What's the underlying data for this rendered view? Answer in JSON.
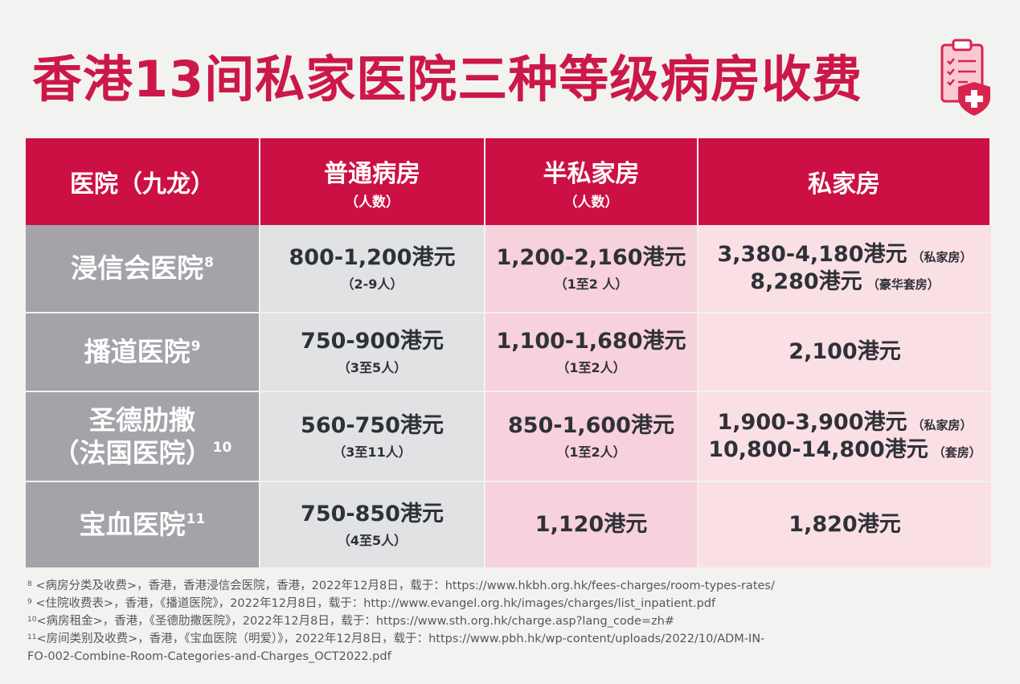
{
  "title": "香港13间私家医院三种等级病房收费",
  "header": {
    "hospital": "医院（九龙）",
    "general": "普通病房",
    "general_sub": "（人数）",
    "semi": "半私家房",
    "semi_sub": "（人数）",
    "private": "私家房"
  },
  "rows": [
    {
      "name": "浸信会医院",
      "ref": "8",
      "general_price": "800-1,200港元",
      "general_sub": "（2-9人）",
      "semi_price": "1,200-2,160港元",
      "semi_sub": "（1至2 人）",
      "private_line1": "3,380-4,180港元",
      "private_note1": "（私家房）",
      "private_line2": "8,280港元",
      "private_note2": "（豪华套房）"
    },
    {
      "name": "播道医院",
      "ref": "9",
      "general_price": "750-900港元",
      "general_sub": "（3至5人）",
      "semi_price": "1,100-1,680港元",
      "semi_sub": "（1至2人）",
      "private_line1": "2,100港元"
    },
    {
      "name_line1": "圣德肋撒",
      "name_line2": "（法国医院）",
      "ref": "10",
      "general_price": "560-750港元",
      "general_sub": "（3至11人）",
      "semi_price": "850-1,600港元",
      "semi_sub": "（1至2人）",
      "private_line1": "1,900-3,900港元",
      "private_note1": "（私家房）",
      "private_line2": "10,800-14,800港元",
      "private_note2": "（套房）"
    },
    {
      "name": "宝血医院",
      "ref": "11",
      "general_price": "750-850港元",
      "general_sub": "（4至5人）",
      "semi_price": "1,120港元",
      "private_line1": "1,820港元"
    }
  ],
  "footnotes": [
    {
      "ref": "8",
      "text": "<病房分类及收费>，香港，香港浸信会医院，香港，2022年12月8日，载于：https://www.hkbh.org.hk/fees-charges/room-types-rates/"
    },
    {
      "ref": "9",
      "text": "<住院收费表>，香港，《播道医院》，2022年12月8日，载于：http://www.evangel.org.hk/images/charges/list_inpatient.pdf"
    },
    {
      "ref": "10",
      "text": "<病房租金>，香港，《圣德肋撒医院》，2022年12月8日，载于：https://www.sth.org.hk/charge.asp?lang_code=zh#"
    },
    {
      "ref": "11",
      "text": "<房间类别及收费>，香港，《宝血医院（明爱）》，2022年12月8日，载于：https://www.pbh.hk/wp-content/uploads/2022/10/ADM-IN-"
    },
    {
      "ref": "",
      "text": "FO-002-Combine-Room-Categories-and-Charges_OCT2022.pdf"
    }
  ],
  "colors": {
    "accent": "#cc1043",
    "name_col": "#a3a3a9",
    "general_col": "#e1e2e4",
    "semi_col": "#f7d1db",
    "private_col": "#fae0e5"
  },
  "icons": [
    "clipboard-shield-icon"
  ]
}
